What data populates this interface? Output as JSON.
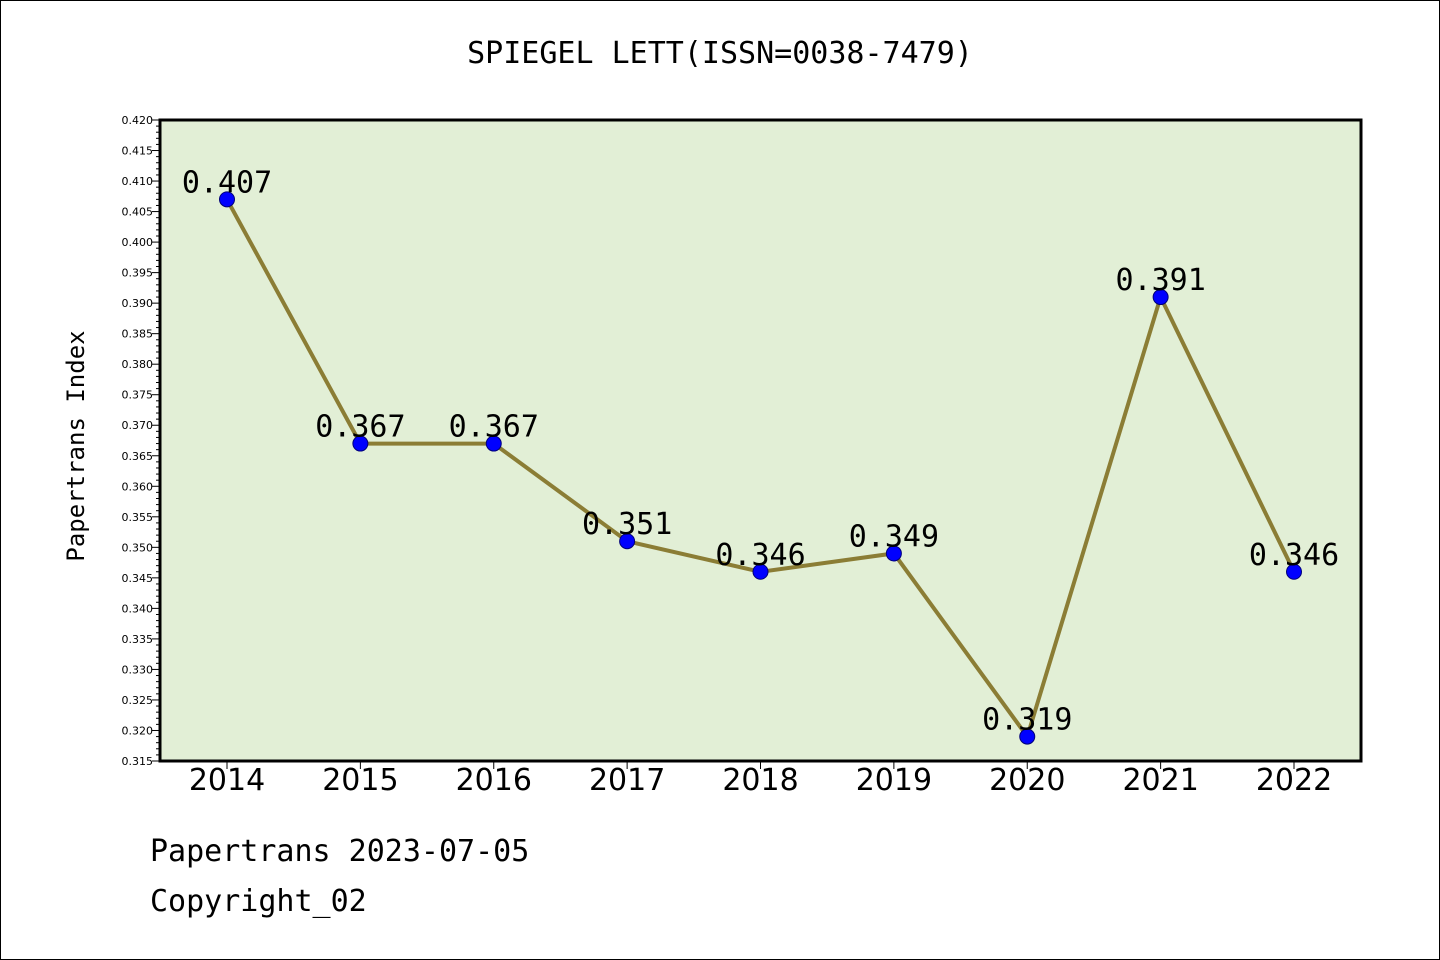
{
  "footer": {
    "line1": "Papertrans 2023-07-05",
    "line2": "Copyright_02"
  },
  "colors": {
    "plot_background": "#e2efd6",
    "line": "#8b7d35",
    "marker": "#0000ff"
  },
  "chart_data": {
    "type": "line",
    "title": "SPIEGEL LETT(ISSN=0038-7479)",
    "xlabel": "",
    "ylabel": "Papertrans Index",
    "categories": [
      "2014",
      "2015",
      "2016",
      "2017",
      "2018",
      "2019",
      "2020",
      "2021",
      "2022"
    ],
    "series": [
      {
        "values": [
          0.407,
          0.367,
          0.367,
          0.351,
          0.346,
          0.349,
          0.319,
          0.391,
          0.346
        ],
        "labels": [
          "0.407",
          "0.367",
          "0.367",
          "0.351",
          "0.346",
          "0.349",
          "0.319",
          "0.391",
          "0.346"
        ]
      }
    ],
    "ylim": [
      0.315,
      0.42
    ],
    "yticks": [
      "0.315",
      "0.320",
      "0.325",
      "0.330",
      "0.335",
      "0.340",
      "0.345",
      "0.350",
      "0.355",
      "0.360",
      "0.365",
      "0.370",
      "0.375",
      "0.380",
      "0.385",
      "0.390",
      "0.395",
      "0.400",
      "0.405",
      "0.410",
      "0.415",
      "0.420"
    ],
    "grid": false,
    "legend": "none"
  }
}
